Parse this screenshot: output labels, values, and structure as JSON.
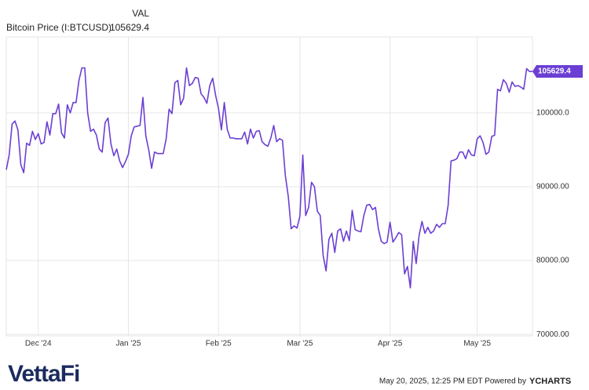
{
  "chart_data": {
    "type": "line",
    "title": "VAL",
    "subtitle": "Bitcoin Price (I:BTCUSD)",
    "series": [
      {
        "name": "Bitcoin Price (I:BTCUSD)",
        "color": "#6b3fd4",
        "values": [
          92300,
          94300,
          98500,
          98900,
          97700,
          93000,
          91900,
          95900,
          95600,
          97500,
          96400,
          97200,
          95800,
          96000,
          98800,
          97000,
          99900,
          99900,
          101200,
          97300,
          96600,
          101100,
          100000,
          101400,
          101400,
          104400,
          106100,
          106100,
          100000,
          97500,
          97800,
          97000,
          95100,
          94700,
          98700,
          99300,
          95800,
          94200,
          95100,
          93500,
          92600,
          93400,
          94400,
          96900,
          98100,
          98200,
          98300,
          102100,
          96900,
          95000,
          92500,
          94700,
          94500,
          94500,
          94500,
          96500,
          100500,
          99900,
          104100,
          104400,
          101100,
          102000,
          106100,
          103700,
          104000,
          104800,
          104700,
          102600,
          102100,
          101300,
          103700,
          104700,
          102400,
          100600,
          97700,
          101400,
          97800,
          96600,
          96600,
          96500,
          96500,
          96500,
          97400,
          95800,
          97800,
          96600,
          97500,
          97600,
          96100,
          95700,
          95500,
          96600,
          98300,
          96100,
          96500,
          96300,
          91500,
          88700,
          84300,
          84700,
          84400,
          86000,
          94300,
          86100,
          87200,
          90600,
          90000,
          86700,
          86100,
          80700,
          78600,
          82900,
          83700,
          81100,
          84000,
          84300,
          82600,
          84000,
          82700,
          86800,
          84200,
          84000,
          83900,
          86100,
          87500,
          87600,
          86900,
          87200,
          84300,
          82600,
          82300,
          82500,
          85200,
          82500,
          83100,
          83800,
          83500,
          78200,
          79200,
          76300,
          82600,
          79600,
          83400,
          85300,
          83700,
          84500,
          83700,
          84000,
          84900,
          84500,
          85000,
          85000,
          87500,
          93500,
          93600,
          93800,
          94700,
          94700,
          93800,
          95000,
          94300,
          94200,
          96500,
          96900,
          96000,
          94400,
          94700,
          96800,
          97000,
          103200,
          103000,
          104500,
          104000,
          102800,
          104200,
          103600,
          103700,
          103500,
          103200,
          106000,
          105600,
          105629.4
        ]
      }
    ],
    "xlim": [
      0,
      181
    ],
    "xticks": [
      {
        "value": 11,
        "label": "Dec '24"
      },
      {
        "value": 42,
        "label": "Jan '25"
      },
      {
        "value": 73,
        "label": "Feb '25"
      },
      {
        "value": 101,
        "label": "Mar '25"
      },
      {
        "value": 132,
        "label": "Apr '25"
      },
      {
        "value": 162,
        "label": "May '25"
      }
    ],
    "ylim": [
      69800,
      110300
    ],
    "yticks": [
      {
        "value": 70000,
        "label": "70000.00"
      },
      {
        "value": 80000,
        "label": "80000.00"
      },
      {
        "value": 90000,
        "label": "90000.00"
      },
      {
        "value": 100000,
        "label": "100000.0"
      }
    ],
    "grid": true
  },
  "footer": {
    "brand": "VettaFi",
    "timestamp": "May 20, 2025, 12:25 PM EDT Powered by",
    "provider": "YCHARTS"
  }
}
